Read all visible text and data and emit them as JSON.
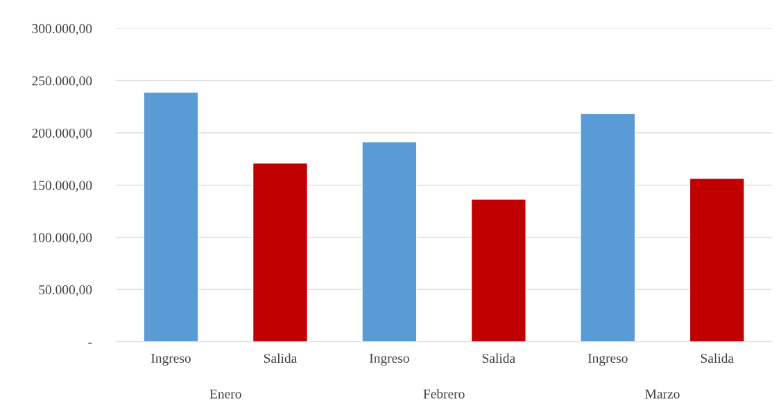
{
  "chart_data": {
    "type": "bar",
    "categories": [
      "Enero",
      "Febrero",
      "Marzo"
    ],
    "series": [
      {
        "name": "Ingreso",
        "color": "#5b9bd5",
        "values": [
          239000,
          191500,
          218500
        ]
      },
      {
        "name": "Salida",
        "color": "#c00000",
        "values": [
          171000,
          136500,
          156500
        ]
      }
    ],
    "ylim": [
      0,
      300000
    ],
    "yticks": [
      {
        "value": 0,
        "label": "-"
      },
      {
        "value": 50000,
        "label": "50.000,00"
      },
      {
        "value": 100000,
        "label": "100.000,00"
      },
      {
        "value": 150000,
        "label": "150.000,00"
      },
      {
        "value": 200000,
        "label": "200.000,00"
      },
      {
        "value": 250000,
        "label": "250.000,00"
      },
      {
        "value": 300000,
        "label": "300.000,00"
      }
    ],
    "grid": "y",
    "legend": false
  }
}
